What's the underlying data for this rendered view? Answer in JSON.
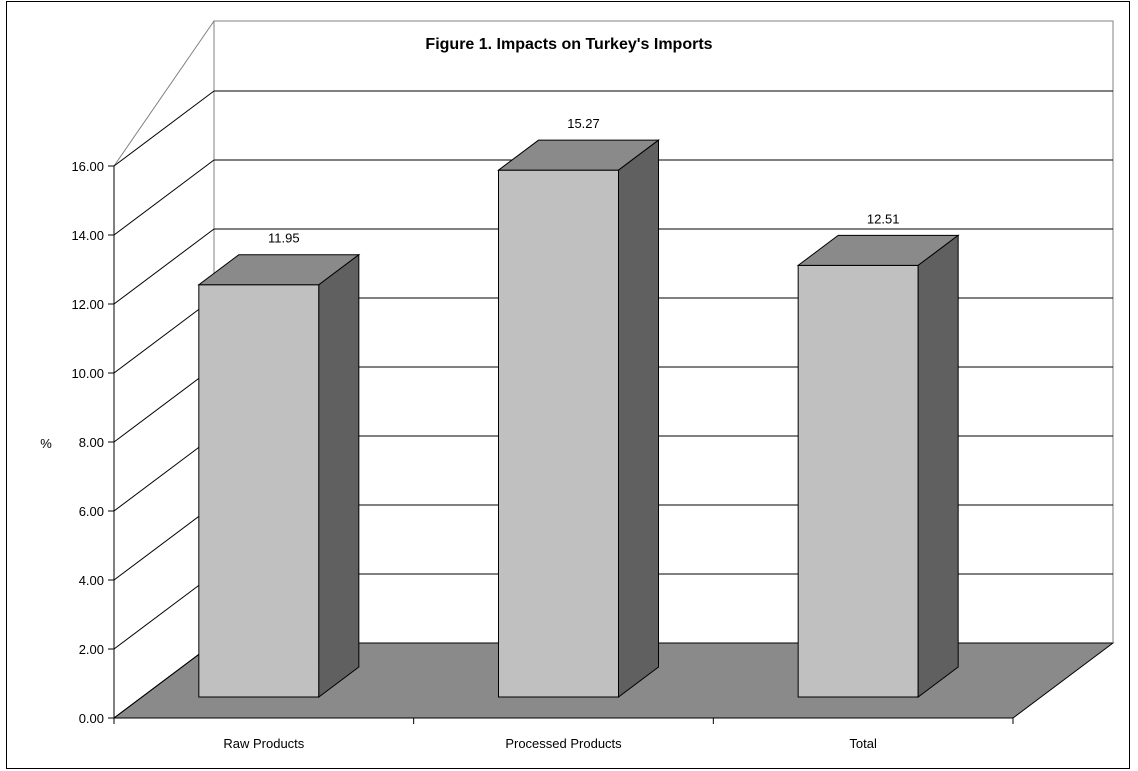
{
  "chart_data": {
    "type": "bar",
    "title": "Figure 1. Impacts on Turkey's Imports",
    "ylabel": "%",
    "xlabel": "",
    "categories": [
      "Raw Products",
      "Processed Products",
      "Total"
    ],
    "values": [
      11.95,
      15.27,
      12.51
    ],
    "value_labels": [
      "11.95",
      "15.27",
      "12.51"
    ],
    "ylim": [
      0,
      16
    ],
    "y_ticks": [
      "0.00",
      "2.00",
      "4.00",
      "6.00",
      "8.00",
      "10.00",
      "12.00",
      "14.00",
      "16.00"
    ],
    "grid": true,
    "style": "3d",
    "colors": {
      "bar_front": "#c0c0c0",
      "bar_top": "#8a8a8a",
      "bar_side": "#606060",
      "floor": "#8a8a8a",
      "gridline": "#000000"
    }
  }
}
